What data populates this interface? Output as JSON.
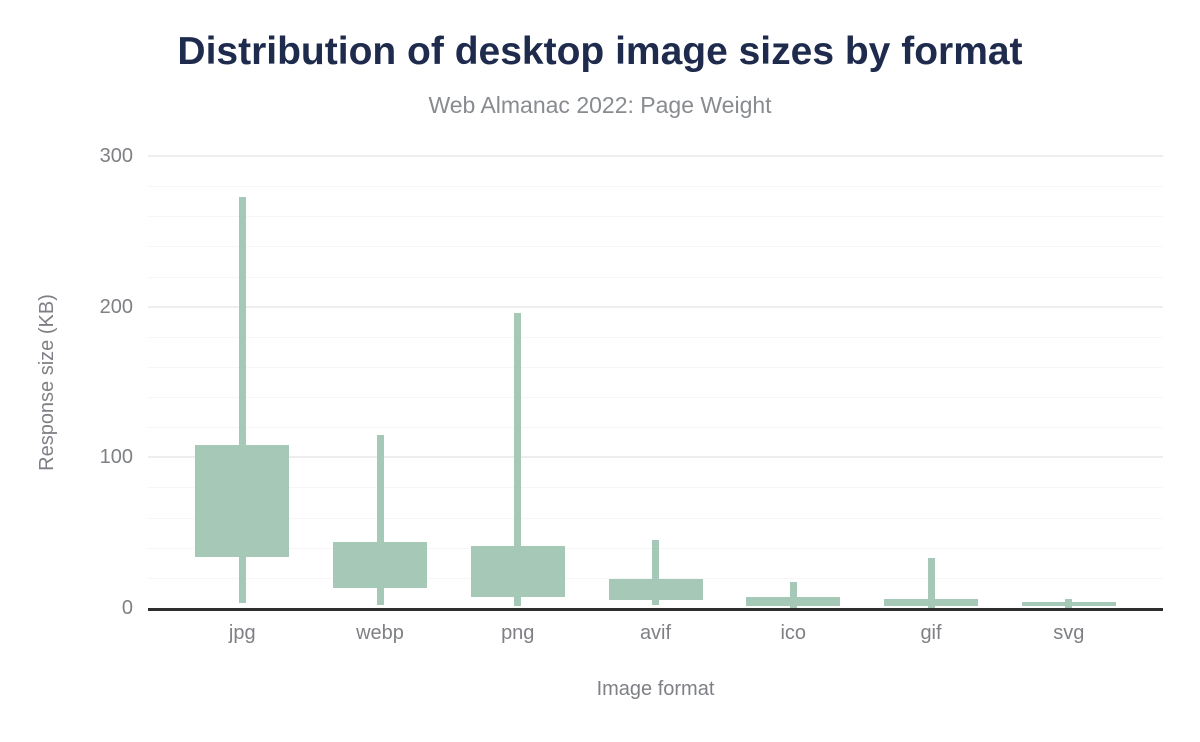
{
  "chart_data": {
    "type": "boxplot",
    "title": "Distribution of desktop image sizes by format",
    "subtitle": "Web Almanac 2022: Page Weight",
    "xlabel": "Image format",
    "ylabel": "Response size (KB)",
    "categories": [
      "jpg",
      "webp",
      "png",
      "avif",
      "ico",
      "gif",
      "svg"
    ],
    "series": [
      {
        "name": "desktop",
        "points": [
          {
            "category": "jpg",
            "low": 3,
            "q1": 34,
            "q3": 108,
            "high": 273
          },
          {
            "category": "webp",
            "low": 2,
            "q1": 13,
            "q3": 44,
            "high": 115
          },
          {
            "category": "png",
            "low": 1,
            "q1": 7,
            "q3": 41,
            "high": 196
          },
          {
            "category": "avif",
            "low": 2,
            "q1": 5,
            "q3": 19,
            "high": 45
          },
          {
            "category": "ico",
            "low": 0,
            "q1": 1,
            "q3": 7,
            "high": 17
          },
          {
            "category": "gif",
            "low": 0,
            "q1": 1,
            "q3": 6,
            "high": 33
          },
          {
            "category": "svg",
            "low": 0,
            "q1": 1,
            "q3": 4,
            "high": 6
          }
        ]
      }
    ],
    "ylim": [
      0,
      300
    ],
    "yticks": [
      0,
      100,
      200,
      300
    ],
    "grid": {
      "show": true,
      "minor_step": 20,
      "major_step": 100
    },
    "legend": "none",
    "median_shown": false,
    "colors": {
      "box_fill": "#a5c9b6",
      "title": "#1f2b4d",
      "subtitle": "#888b8f",
      "axis_text": "#7e8085",
      "axis_line": "#2e2e2e",
      "gridline_major": "#eeeeee",
      "gridline_minor": "#f6f6f6",
      "background": "#ffffff"
    }
  }
}
